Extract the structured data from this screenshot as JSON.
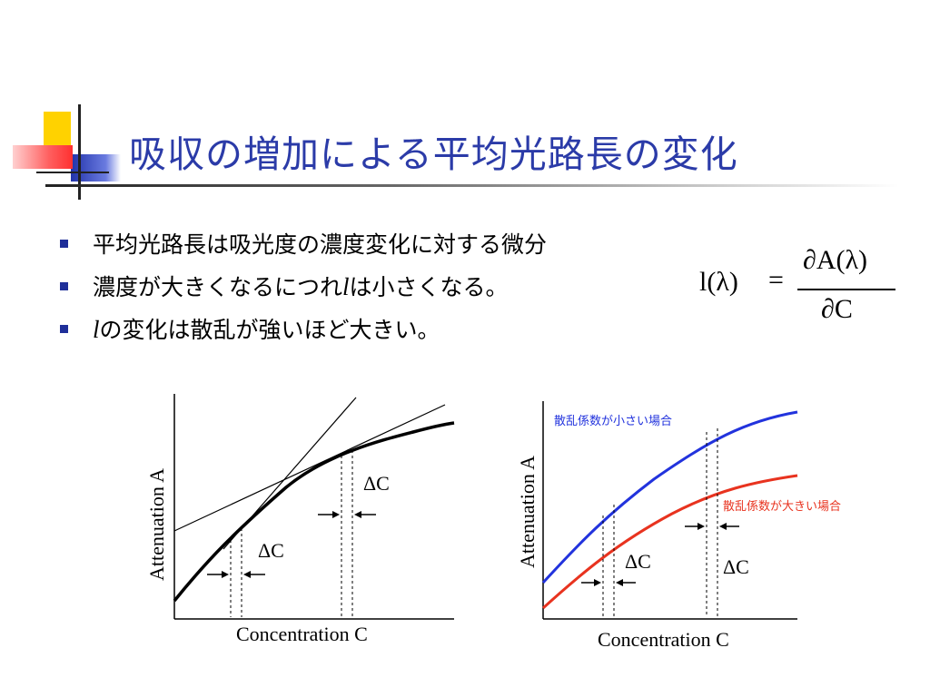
{
  "slide": {
    "title": "吸収の増加による平均光路長の変化",
    "bullets": [
      {
        "pre": "",
        "var": "",
        "text": "平均光路長は吸光度の濃度変化に対する微分"
      },
      {
        "pre": "濃度が大きくなるにつれ",
        "var": "l",
        "text": "は小さくなる。"
      },
      {
        "pre": "",
        "var": "l",
        "text": "の変化は散乱が強いほど大きい。"
      }
    ],
    "formula": {
      "lhs": "l(λ)",
      "equals": "=",
      "numerator": "∂A(λ)",
      "denominator": "∂C"
    }
  },
  "chart_data": [
    {
      "type": "line",
      "xlabel": "Concentration C",
      "ylabel": "Attenuation A",
      "annotations": [
        "ΔC",
        "ΔC"
      ],
      "series": [
        {
          "values": "concave attenuation curve"
        }
      ]
    },
    {
      "type": "line",
      "xlabel": "Concentration C",
      "ylabel": "Attenuation A",
      "annotations": [
        "ΔC",
        "ΔC"
      ],
      "series": [
        {
          "name": "散乱係数が小さい場合",
          "color": "#2233dd"
        },
        {
          "name": "散乱係数が大きい場合",
          "color": "#e8331f"
        }
      ]
    }
  ]
}
